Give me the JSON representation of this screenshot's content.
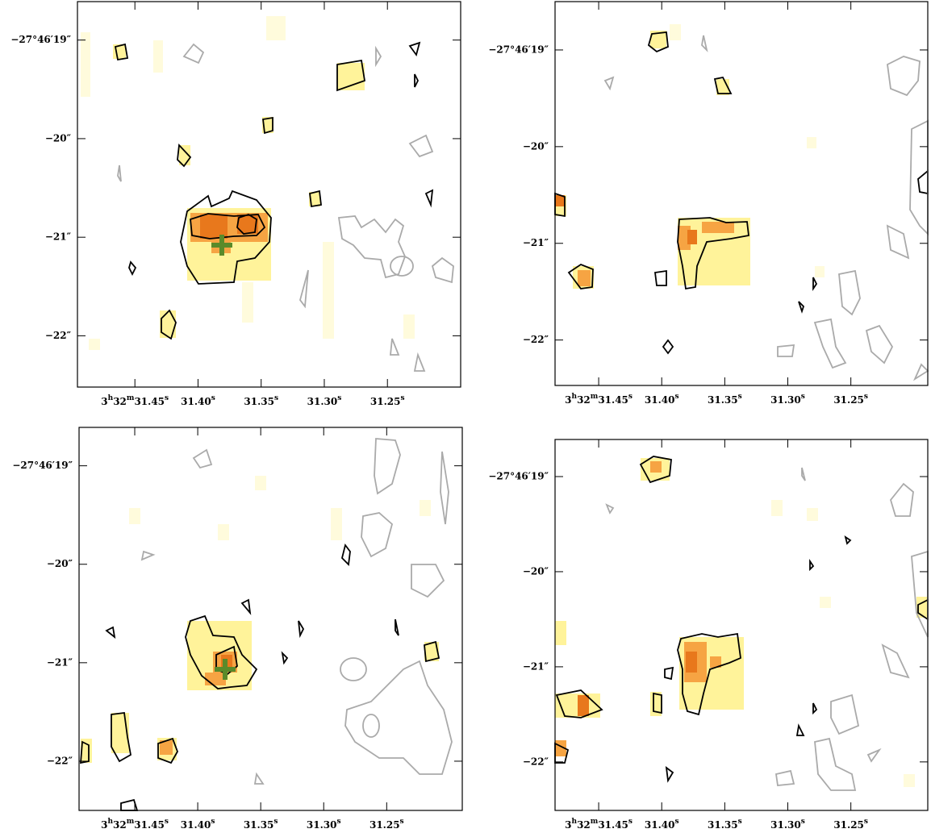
{
  "chart_data": [
    {
      "type": "image",
      "xlim": [
        31.4955,
        31.192
      ],
      "ylim": [
        -18.61,
        -22.52
      ],
      "xticks": [
        {
          "value": 31.45,
          "label": "3h32m31.45s"
        },
        {
          "value": 31.4,
          "label": "31.40s"
        },
        {
          "value": 31.35,
          "label": "31.35s"
        },
        {
          "value": 31.3,
          "label": "31.30s"
        },
        {
          "value": 31.25,
          "label": "31.25s"
        }
      ],
      "yticks": [
        {
          "value": -19,
          "label": "−27°46′19″"
        },
        {
          "value": -20,
          "label": "−20″"
        },
        {
          "value": -21,
          "label": "−21″"
        },
        {
          "value": -22,
          "label": "−22″"
        }
      ]
    },
    {
      "type": "image",
      "xlim": [
        31.4846,
        31.189
      ],
      "ylim": [
        -18.5,
        -22.47
      ],
      "xticks": [
        {
          "value": 31.45,
          "label": "3h32m31.45s"
        },
        {
          "value": 31.4,
          "label": "31.40s"
        },
        {
          "value": 31.35,
          "label": "31.35s"
        },
        {
          "value": 31.3,
          "label": "31.30s"
        },
        {
          "value": 31.25,
          "label": "31.25s"
        }
      ],
      "yticks": [
        {
          "value": -19,
          "label": "−27°46′19″"
        },
        {
          "value": -20,
          "label": "−20″"
        },
        {
          "value": -21,
          "label": "−21″"
        },
        {
          "value": -22,
          "label": "−22″"
        }
      ]
    },
    {
      "type": "image",
      "xlim": [
        31.4942,
        31.19
      ],
      "ylim": [
        -18.61,
        -22.5
      ],
      "xticks": [
        {
          "value": 31.45,
          "label": "3h32m31.45s"
        },
        {
          "value": 31.4,
          "label": "31.40s"
        },
        {
          "value": 31.35,
          "label": "31.35s"
        },
        {
          "value": 31.3,
          "label": "31.30s"
        },
        {
          "value": 31.25,
          "label": "31.25s"
        }
      ],
      "yticks": [
        {
          "value": -19,
          "label": "−27°46′19″"
        },
        {
          "value": -20,
          "label": "−20″"
        },
        {
          "value": -21,
          "label": "−21″"
        },
        {
          "value": -22,
          "label": "−22″"
        }
      ]
    },
    {
      "type": "image",
      "xlim": [
        31.4846,
        31.189
      ],
      "ylim": [
        -18.61,
        -22.51
      ],
      "xticks": [
        {
          "value": 31.45,
          "label": "3h32m31.45s"
        },
        {
          "value": 31.4,
          "label": "31.40s"
        },
        {
          "value": 31.35,
          "label": "31.35s"
        },
        {
          "value": 31.3,
          "label": "31.30s"
        },
        {
          "value": 31.25,
          "label": "31.25s"
        }
      ],
      "yticks": [
        {
          "value": -19,
          "label": "−27°46′19″"
        },
        {
          "value": -20,
          "label": "−20″"
        },
        {
          "value": -21,
          "label": "−21″"
        },
        {
          "value": -22,
          "label": "−22″"
        }
      ]
    }
  ]
}
